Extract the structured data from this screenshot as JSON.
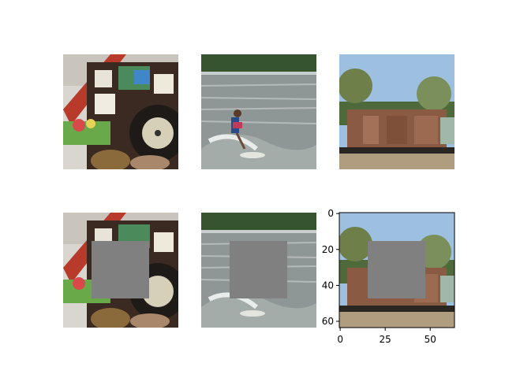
{
  "figure": {
    "panels": [
      {
        "row": 0,
        "col": 0,
        "subject": "cuckoo clock",
        "masked": false
      },
      {
        "row": 0,
        "col": 1,
        "subject": "surfer on wave",
        "masked": false
      },
      {
        "row": 0,
        "col": 2,
        "subject": "old boxcar train",
        "masked": false
      },
      {
        "row": 1,
        "col": 0,
        "subject": "cuckoo clock",
        "masked": true
      },
      {
        "row": 1,
        "col": 1,
        "subject": "surfer on wave",
        "masked": true
      },
      {
        "row": 1,
        "col": 2,
        "subject": "old boxcar train",
        "masked": true
      }
    ],
    "mask_color": "#808080",
    "image_size": [
      64,
      64
    ],
    "mask_box": {
      "x0": 16,
      "x1": 48,
      "y0": 16,
      "y1": 48
    },
    "last_axes": {
      "xticks": [
        "0",
        "25",
        "50"
      ],
      "yticks": [
        "0",
        "20",
        "40",
        "60"
      ],
      "xtick_values": [
        0,
        25,
        50
      ],
      "ytick_values": [
        0,
        20,
        40,
        60
      ]
    }
  }
}
